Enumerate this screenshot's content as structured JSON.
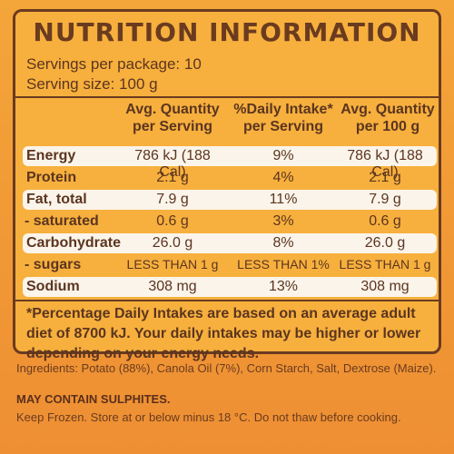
{
  "panel": {
    "title": "NUTRITION INFORMATION",
    "servings_line": "Servings per package: 10",
    "serving_size_line": "Serving size: 100 g",
    "headers": {
      "col1": "Avg. Quantity per Serving",
      "col2": "%Daily Intake* per Serving",
      "col3": "Avg. Quantity per 100 g"
    },
    "rows": [
      {
        "name": "Energy",
        "c1": "786 kJ (188 Cal)",
        "c2": "9%",
        "c3": "786 kJ (188 Cal)"
      },
      {
        "name": "Protein",
        "c1": "2.1 g",
        "c2": "4%",
        "c3": "2.1 g"
      },
      {
        "name": "Fat, total",
        "c1": "7.9 g",
        "c2": "11%",
        "c3": "7.9 g"
      },
      {
        "name": "- saturated",
        "c1": "0.6 g",
        "c2": "3%",
        "c3": "0.6 g"
      },
      {
        "name": "Carbohydrate",
        "c1": "26.0 g",
        "c2": "8%",
        "c3": "26.0 g"
      },
      {
        "name": "- sugars",
        "c1": "LESS THAN 1 g",
        "c2": "LESS THAN 1%",
        "c3": "LESS THAN 1 g"
      },
      {
        "name": "Sodium",
        "c1": "308 mg",
        "c2": "13%",
        "c3": "308 mg"
      }
    ],
    "note": "*Percentage Daily Intakes are based on an average adult diet of 8700 kJ. Your daily intakes may be higher or lower depending on your energy needs."
  },
  "ingredients": "Ingredients: Potato (88%), Canola Oil (7%), Corn Starch, Salt, Dextrose (Maize).",
  "contains": "MAY CONTAIN SULPHITES.",
  "storage": "Keep Frozen. Store at or below minus 18 °C. Do not thaw before cooking."
}
